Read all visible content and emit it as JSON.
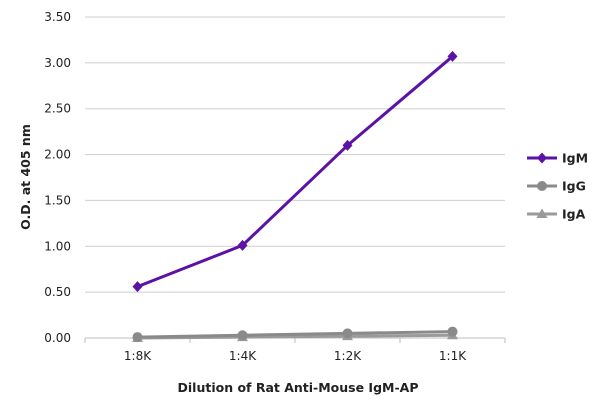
{
  "chart_data": {
    "type": "line",
    "title": "",
    "xlabel": "Dilution of Rat Anti-Mouse IgM-AP",
    "ylabel": "O.D. at 405 nm",
    "categories": [
      "1:8K",
      "1:4K",
      "1:2K",
      "1:1K"
    ],
    "ylim": [
      0,
      3.5
    ],
    "yticks": [
      "0.00",
      "0.50",
      "1.00",
      "1.50",
      "2.00",
      "2.50",
      "3.00",
      "3.50"
    ],
    "grid": "horizontal",
    "legend_position": "right",
    "series": [
      {
        "name": "IgM",
        "values": [
          0.56,
          1.01,
          2.1,
          3.07
        ],
        "color": "#5b12a5",
        "marker": "diamond"
      },
      {
        "name": "IgG",
        "values": [
          0.01,
          0.03,
          0.05,
          0.07
        ],
        "color": "#8a8a8a",
        "marker": "circle"
      },
      {
        "name": "IgA",
        "values": [
          0.0,
          0.01,
          0.02,
          0.03
        ],
        "color": "#9a9a9a",
        "marker": "triangle"
      }
    ]
  }
}
